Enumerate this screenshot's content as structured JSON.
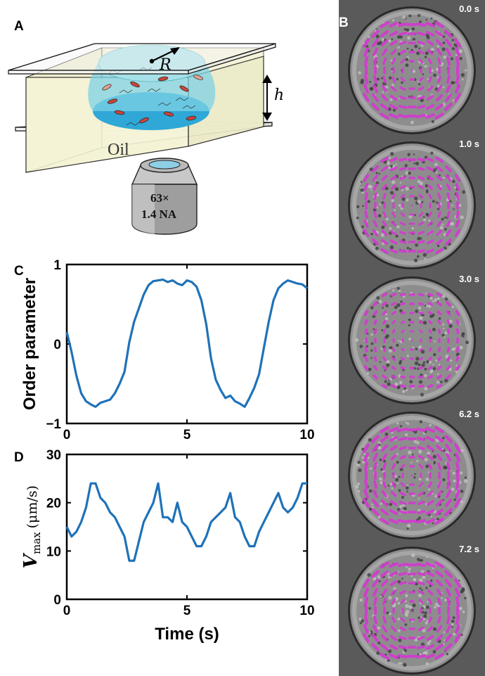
{
  "panels": {
    "a": {
      "label": "A",
      "radius_symbol": "R",
      "height_symbol": "h",
      "medium_label": "Oil",
      "objective_mag": "63×",
      "objective_na": "1.4 NA"
    },
    "b": {
      "label": "B",
      "frames": [
        "0.0 s",
        "1.0 s",
        "3.0 s",
        "6.2 s",
        "7.2 s"
      ]
    },
    "c": {
      "label": "C"
    },
    "d": {
      "label": "D"
    }
  },
  "colors": {
    "line": "#1f72b8",
    "vectors": "#d33bd0",
    "oil": "#f6f5d8",
    "droplet": "#6fd0e2"
  },
  "chart_data": [
    {
      "type": "line",
      "ylabel": "Order parameter",
      "xlabel": "",
      "xlim": [
        0,
        10
      ],
      "ylim": [
        -1,
        1
      ],
      "xticks": [
        0,
        5,
        10
      ],
      "yticks": [
        -1,
        0,
        1
      ],
      "ytick_labels": [
        "−1",
        "0",
        "1"
      ],
      "grid": false,
      "series": [
        {
          "x": [
            0,
            0.2,
            0.4,
            0.6,
            0.8,
            1.0,
            1.2,
            1.4,
            1.6,
            1.8,
            2.0,
            2.2,
            2.4,
            2.6,
            2.8,
            3.0,
            3.2,
            3.4,
            3.6,
            3.8,
            4.0,
            4.2,
            4.4,
            4.6,
            4.8,
            5.0,
            5.2,
            5.4,
            5.6,
            5.8,
            6.0,
            6.2,
            6.4,
            6.6,
            6.8,
            7.0,
            7.2,
            7.4,
            7.6,
            7.8,
            8.0,
            8.2,
            8.4,
            8.6,
            8.8,
            9.0,
            9.2,
            9.4,
            9.6,
            9.8,
            10.0
          ],
          "y": [
            0.15,
            -0.1,
            -0.4,
            -0.62,
            -0.72,
            -0.76,
            -0.79,
            -0.74,
            -0.72,
            -0.7,
            -0.62,
            -0.5,
            -0.35,
            0.02,
            0.28,
            0.45,
            0.62,
            0.74,
            0.79,
            0.8,
            0.81,
            0.78,
            0.8,
            0.76,
            0.74,
            0.8,
            0.78,
            0.72,
            0.55,
            0.25,
            -0.18,
            -0.45,
            -0.58,
            -0.68,
            -0.65,
            -0.72,
            -0.75,
            -0.79,
            -0.68,
            -0.55,
            -0.38,
            -0.05,
            0.28,
            0.55,
            0.7,
            0.76,
            0.8,
            0.78,
            0.76,
            0.75,
            0.7
          ]
        }
      ]
    },
    {
      "type": "line",
      "ylabel_main": "V",
      "ylabel_sub": "max",
      "ylabel_unit": "(μm/s)",
      "xlabel": "Time (s)",
      "xlim": [
        0,
        10
      ],
      "ylim": [
        0,
        30
      ],
      "xticks": [
        0,
        5,
        10
      ],
      "yticks": [
        0,
        10,
        20,
        30
      ],
      "ytick_labels": [
        "0",
        "10",
        "20",
        "30"
      ],
      "grid": false,
      "series": [
        {
          "x": [
            0,
            0.2,
            0.4,
            0.6,
            0.8,
            1.0,
            1.2,
            1.4,
            1.6,
            1.8,
            2.0,
            2.2,
            2.4,
            2.6,
            2.8,
            3.0,
            3.2,
            3.4,
            3.6,
            3.8,
            4.0,
            4.2,
            4.4,
            4.6,
            4.8,
            5.0,
            5.2,
            5.4,
            5.6,
            5.8,
            6.0,
            6.2,
            6.4,
            6.6,
            6.8,
            7.0,
            7.2,
            7.4,
            7.6,
            7.8,
            8.0,
            8.2,
            8.4,
            8.6,
            8.8,
            9.0,
            9.2,
            9.4,
            9.6,
            9.8,
            10.0
          ],
          "y": [
            15,
            13,
            14,
            16,
            19,
            24,
            24,
            21,
            20,
            18,
            17,
            15,
            13,
            8,
            8,
            12,
            16,
            18,
            20,
            24,
            17,
            17,
            16,
            20,
            16,
            15,
            13,
            11,
            11,
            13,
            16,
            17,
            18,
            19,
            22,
            17,
            16,
            13,
            11,
            11,
            14,
            16,
            18,
            20,
            22,
            19,
            18,
            19,
            21,
            24,
            24
          ]
        }
      ]
    }
  ]
}
